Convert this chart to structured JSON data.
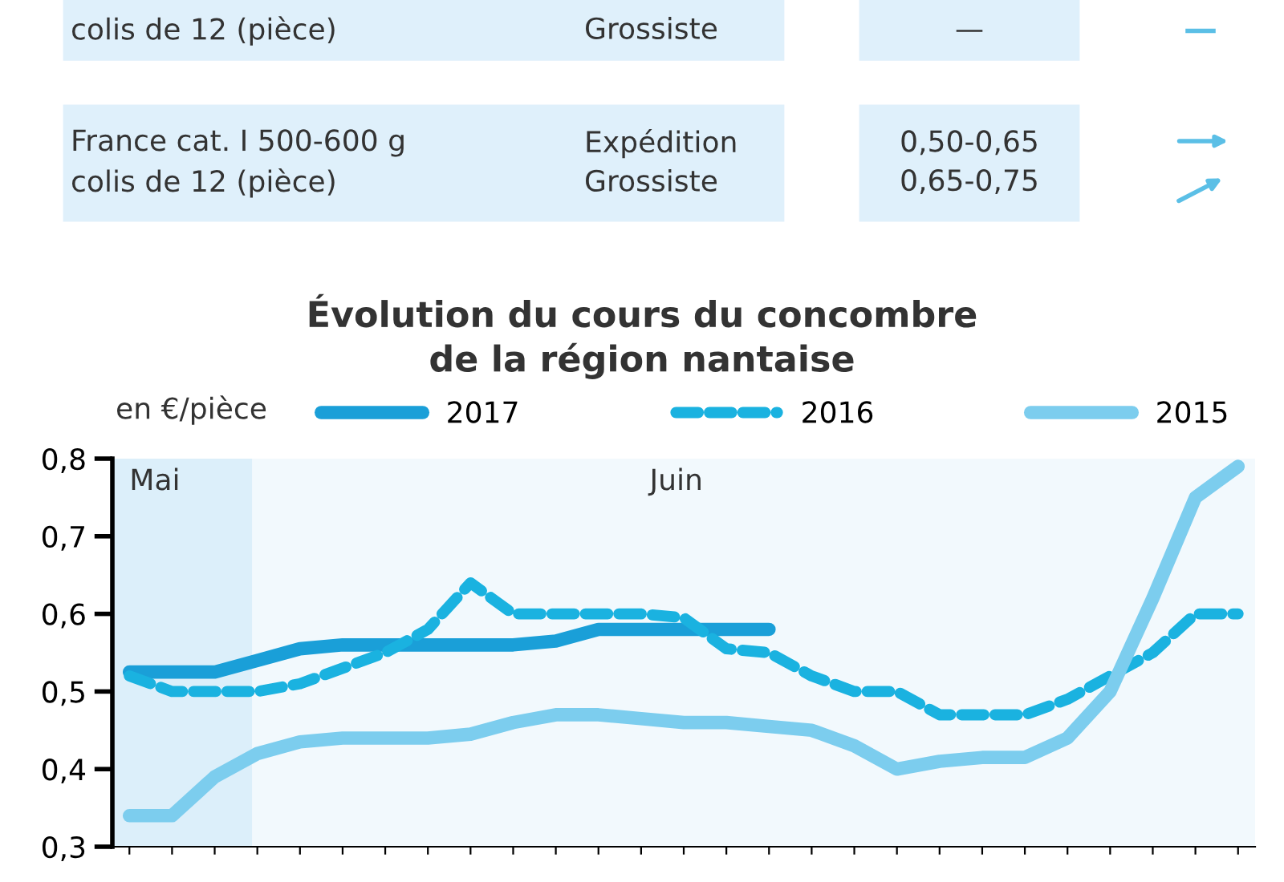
{
  "chart_data": {
    "type": "line",
    "title": "Évolution du cours du concombre\nde la région nantaise",
    "ylabel": "en €/pièce",
    "categories": [
      null,
      null,
      null,
      null,
      null,
      null,
      null,
      null,
      null,
      null,
      null,
      null,
      null,
      null,
      null,
      null,
      null,
      null,
      null,
      null,
      null,
      null,
      null,
      null,
      null,
      null,
      null
    ],
    "series": [
      {
        "name": "2017",
        "color": "#1a9fd8",
        "line_style": "solid",
        "values": [
          0.525,
          0.525,
          0.525,
          0.54,
          0.555,
          0.56,
          0.56,
          0.56,
          0.56,
          0.56,
          0.565,
          0.58,
          0.58,
          0.58,
          0.58,
          0.58,
          null,
          null,
          null,
          null,
          null,
          null,
          null,
          null,
          null,
          null,
          null
        ]
      },
      {
        "name": "2016",
        "color": "#1ab2e0",
        "line_style": "dashed",
        "values": [
          0.52,
          0.5,
          0.5,
          0.5,
          0.51,
          0.53,
          0.55,
          0.58,
          0.64,
          0.6,
          0.6,
          0.6,
          0.6,
          0.595,
          0.555,
          0.55,
          0.52,
          0.5,
          0.5,
          0.47,
          0.47,
          0.47,
          0.49,
          0.52,
          0.55,
          0.6,
          0.6
        ]
      },
      {
        "name": "2015",
        "color": "#7ccdee",
        "line_style": "solid",
        "values": [
          0.34,
          0.34,
          0.39,
          0.42,
          0.435,
          0.44,
          0.44,
          0.44,
          0.445,
          0.46,
          0.47,
          0.47,
          0.465,
          0.46,
          0.46,
          0.455,
          0.45,
          0.43,
          0.4,
          0.41,
          0.415,
          0.415,
          0.44,
          0.5,
          0.62,
          0.75,
          0.79
        ]
      }
    ],
    "ylim": [
      0.3,
      0.8
    ],
    "yticks": [
      {
        "value": 0.3,
        "label": "0,3"
      },
      {
        "value": 0.4,
        "label": "0,4"
      },
      {
        "value": 0.5,
        "label": "0,5"
      },
      {
        "value": 0.6,
        "label": "0,6"
      },
      {
        "value": 0.7,
        "label": "0,7"
      },
      {
        "value": 0.8,
        "label": "0,8"
      }
    ],
    "annotations": [
      "colis de 12 (pièce)",
      "Grossiste",
      "—",
      "France cat. I 500-600 g\ncolis de 12 (pièce)",
      "Expédition\nGrossiste",
      "0,50-0,65\n0,65-0,75",
      "Mai",
      "Juin"
    ],
    "legend": "top",
    "grid": false,
    "marker": "none"
  }
}
